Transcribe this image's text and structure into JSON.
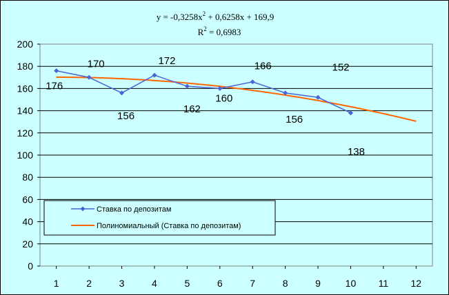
{
  "chart_data": {
    "type": "line",
    "title": "",
    "xlabel": "",
    "ylabel": "",
    "x": [
      1,
      2,
      3,
      4,
      5,
      6,
      7,
      8,
      9,
      10,
      11,
      12
    ],
    "xlim": [
      0.5,
      12.5
    ],
    "ylim": [
      0,
      200
    ],
    "y_ticks": [
      0,
      20,
      40,
      60,
      80,
      100,
      120,
      140,
      160,
      180,
      200
    ],
    "grid": "horizontal",
    "legend_position": "bottom-left",
    "series": [
      {
        "name": "Ставка по депозитам",
        "color": "#4a64d8",
        "marker": "diamond",
        "x": [
          1,
          2,
          3,
          4,
          5,
          6,
          7,
          8,
          9,
          10
        ],
        "values": [
          176,
          170,
          156,
          172,
          162,
          160,
          166,
          156,
          152,
          138
        ],
        "labels": [
          "176",
          "170",
          "156",
          "172",
          "162",
          "160",
          "166",
          "156",
          "152",
          "138"
        ]
      },
      {
        "name": "Полиномиальный (Ставка по депозитам)",
        "color": "#ff6600",
        "type": "trendline",
        "x": [
          1,
          12
        ],
        "equation": "y = -0,3258x² + 0,6258x + 169,9",
        "coefficients": [
          -0.3258,
          0.6258,
          169.9
        ]
      }
    ],
    "annotations": {
      "equation_prefix": "y = -0,3258x",
      "equation_exp": "2",
      "equation_suffix": " + 0,6258x + 169,9",
      "r2_prefix": "R",
      "r2_exp": "2",
      "r2_suffix": " = 0,6983"
    }
  }
}
